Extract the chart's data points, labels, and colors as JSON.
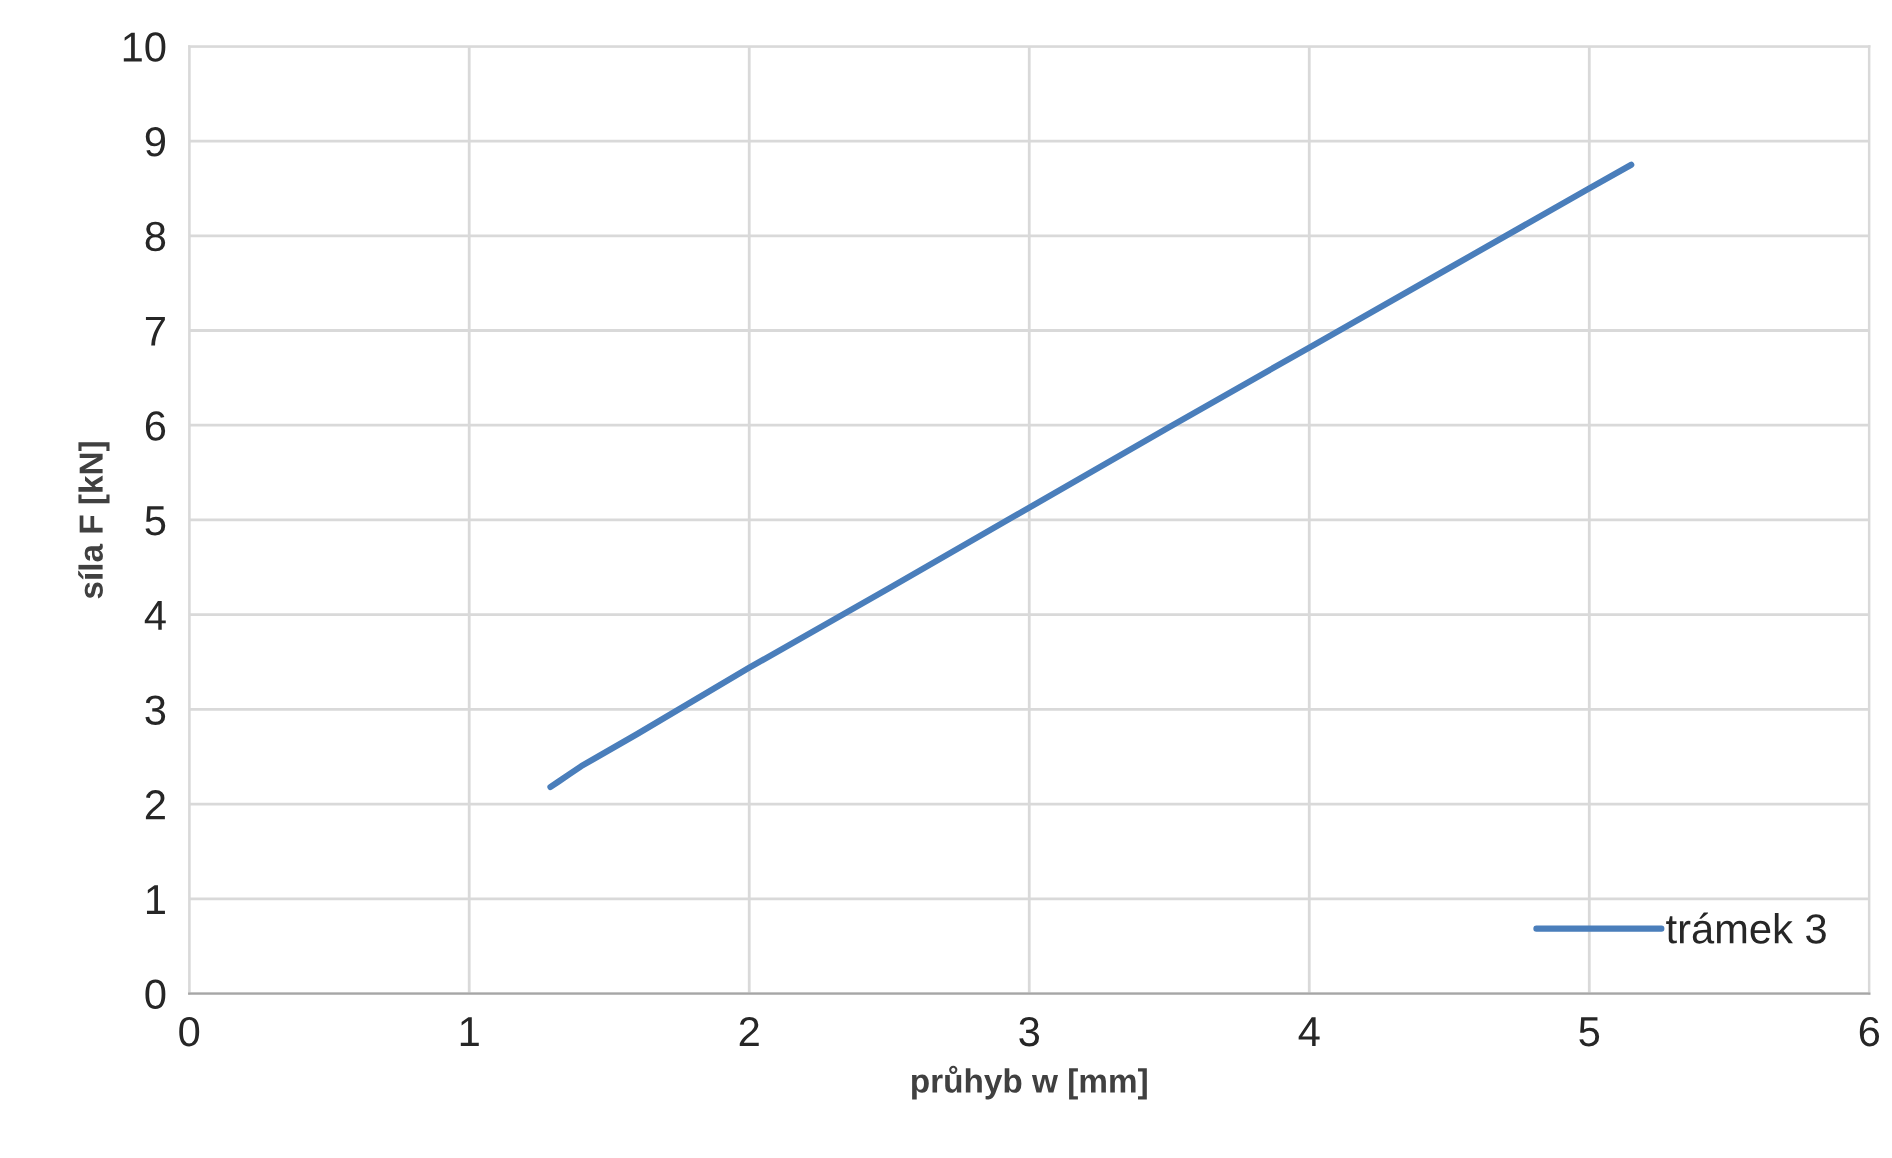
{
  "chart_data": {
    "type": "line",
    "xlabel": "průhyb w [mm]",
    "ylabel": "síla F [kN]",
    "series": [
      {
        "name": "trámek 3",
        "color": "#4a7ebb",
        "x": [
          1.29,
          1.32,
          1.36,
          1.4,
          1.6,
          2.0,
          2.5,
          3.0,
          3.5,
          4.0,
          4.5,
          5.0,
          5.15
        ],
        "values": [
          2.18,
          2.24,
          2.32,
          2.4,
          2.74,
          3.44,
          4.28,
          5.13,
          5.98,
          6.82,
          7.66,
          8.5,
          8.75
        ]
      }
    ],
    "xlim": [
      0,
      6
    ],
    "xticks": [
      0,
      1,
      2,
      3,
      4,
      5,
      6
    ],
    "ylim": [
      0,
      10
    ],
    "yticks": [
      0,
      1,
      2,
      3,
      4,
      5,
      6,
      7,
      8,
      9,
      10
    ],
    "grid": true,
    "legend": "bottom right",
    "marker": "none",
    "line_style": "solid"
  }
}
